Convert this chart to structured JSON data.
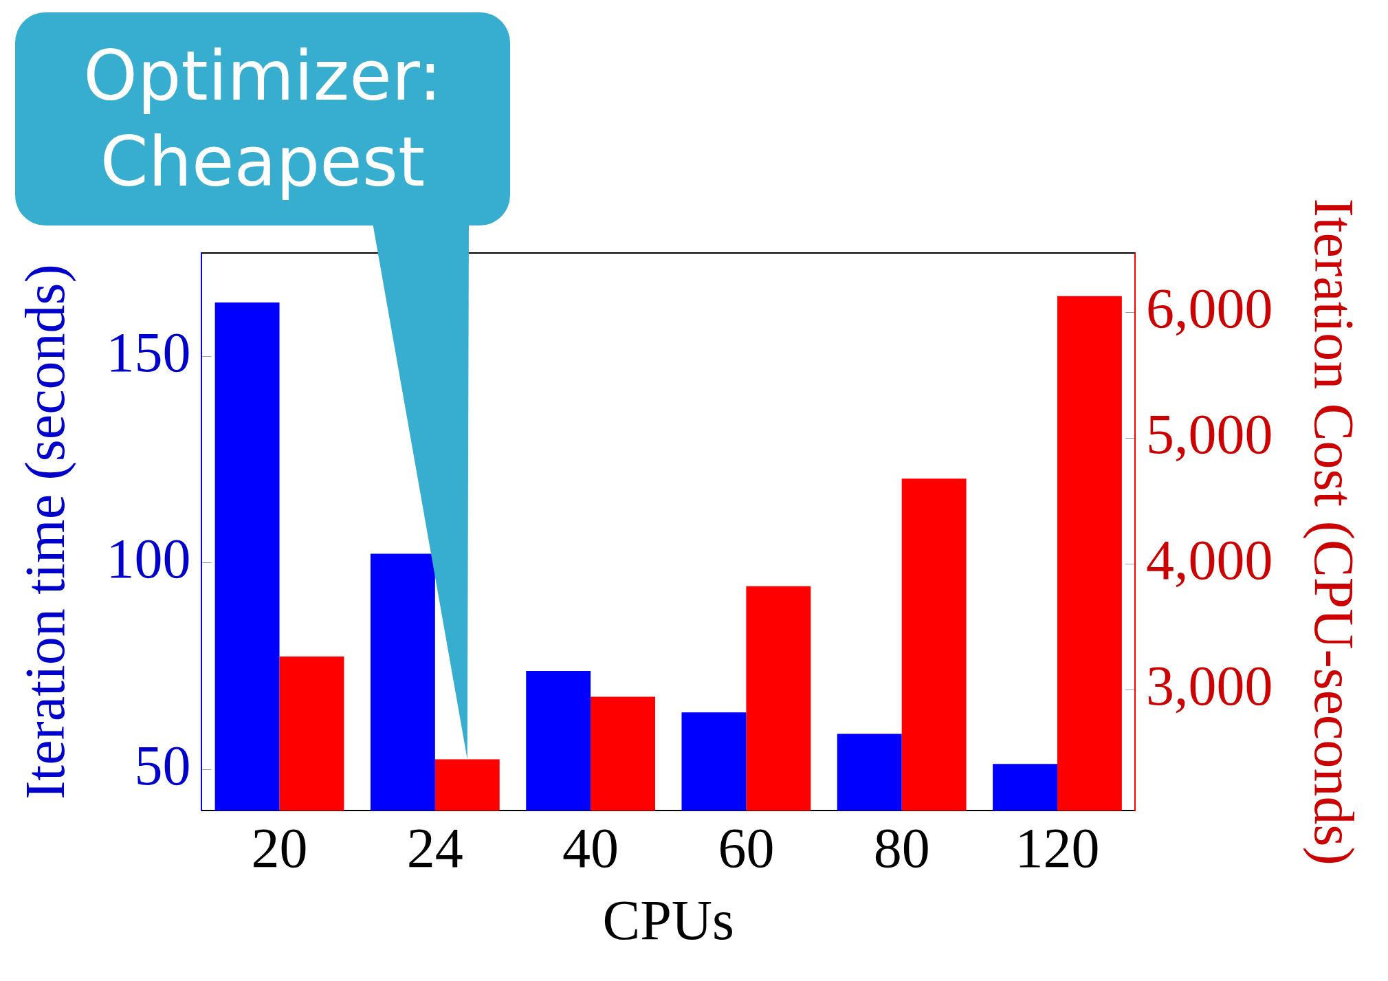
{
  "chart_data": {
    "type": "bar",
    "categories": [
      "20",
      "24",
      "40",
      "60",
      "80",
      "120"
    ],
    "series": [
      {
        "color": "#0000ff",
        "values": [
          163,
          102.2,
          73.8,
          63.8,
          58.6,
          51.3
        ]
      },
      {
        "color": "#ff0000",
        "axis": "y2",
        "values": [
          3265,
          2448,
          2945,
          3823,
          4678,
          6127
        ]
      }
    ],
    "xlabel": "CPUs",
    "ylabel": "Iteration time (seconds)",
    "y2label": "Iteration Cost (CPU-seconds)",
    "ylim": [
      40,
      175
    ],
    "yticks": [
      50,
      100,
      150
    ],
    "y2lim": [
      2040,
      6470
    ],
    "y2ticks": [
      {
        "value": 3000,
        "label": "3,000"
      },
      {
        "value": 4000,
        "label": "4,000"
      },
      {
        "value": 5000,
        "label": "5,000"
      },
      {
        "value": 6000,
        "label": "6,000"
      }
    ],
    "annotations": [
      "Optimizer:\nCheapest"
    ],
    "grid": false,
    "legend": false
  }
}
